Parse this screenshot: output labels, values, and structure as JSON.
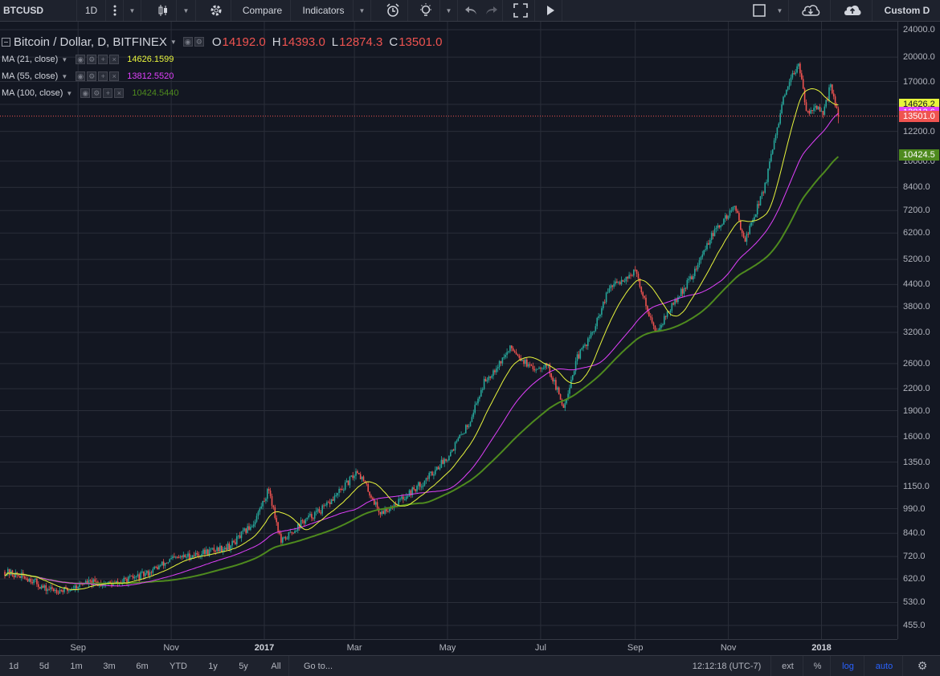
{
  "toolbar": {
    "symbol": "BTCUSD",
    "interval": "1D",
    "compare_label": "Compare",
    "indicators_label": "Indicators",
    "layout_label": "Custom D"
  },
  "legend": {
    "title": "Bitcoin / Dollar, D, BITFINEX",
    "o_label": "O",
    "o_value": "14192.0",
    "h_label": "H",
    "h_value": "14393.0",
    "l_label": "L",
    "l_value": "12874.3",
    "c_label": "C",
    "c_value": "13501.0",
    "studies": [
      {
        "name": "MA (21, close)",
        "value": "14626.1599",
        "color": "#e8f53c"
      },
      {
        "name": "MA (55, close)",
        "value": "13812.5520",
        "color": "#e040fb"
      },
      {
        "name": "MA (100, close)",
        "value": "10424.5440",
        "color": "#4e8a1e"
      }
    ]
  },
  "price_scale": {
    "ticks": [
      "24000.0",
      "20000.0",
      "17000.0",
      "14600.0",
      "12200.0",
      "10000.0",
      "8400.0",
      "7200.0",
      "6200.0",
      "5200.0",
      "4400.0",
      "3800.0",
      "3200.0",
      "2600.0",
      "2200.0",
      "1900.0",
      "1600.0",
      "1350.0",
      "1150.0",
      "990.0",
      "840.0",
      "720.0",
      "620.0",
      "530.0",
      "455.0"
    ],
    "labels": [
      {
        "text": "14626.2",
        "bg": "#e8f53c",
        "fg": "#131722"
      },
      {
        "text": "13812.6",
        "bg": "#e040fb",
        "fg": "#ffffff"
      },
      {
        "text": "13501.0",
        "bg": "#ef5350",
        "fg": "#ffffff"
      },
      {
        "text": "10424.5",
        "bg": "#4e8a1e",
        "fg": "#ffffff"
      }
    ]
  },
  "time_scale": {
    "labels": [
      "Sep",
      "Nov",
      "2017",
      "Mar",
      "May",
      "Jul",
      "Sep",
      "Nov",
      "2018"
    ]
  },
  "bottom": {
    "ranges": [
      "1d",
      "5d",
      "1m",
      "3m",
      "6m",
      "YTD",
      "1y",
      "5y",
      "All"
    ],
    "goto": "Go to...",
    "clock": "12:12:18 (UTC-7)",
    "ext": "ext",
    "percent": "%",
    "log": "log",
    "auto": "auto"
  },
  "colors": {
    "background": "#131722",
    "up": "#26a69a",
    "down": "#ef5350",
    "ma21": "#e8f53c",
    "ma55": "#e040fb",
    "ma100": "#4e8a1e"
  },
  "chart_data": {
    "type": "candlestick",
    "symbol": "BTCUSD",
    "exchange": "BITFINEX",
    "interval": "D",
    "scale": "log",
    "y_range": [
      420,
      25000
    ],
    "x_range": [
      "2016-07-15",
      "2018-01-15"
    ],
    "series": [
      {
        "name": "Bitcoin / Dollar",
        "kind": "ohlc",
        "last": {
          "o": 14192.0,
          "h": 14393.0,
          "l": 12874.3,
          "c": 13501.0
        }
      },
      {
        "name": "MA (21, close)",
        "kind": "line",
        "last": 14626.1599
      },
      {
        "name": "MA (55, close)",
        "kind": "line",
        "last": 13812.552
      },
      {
        "name": "MA (100, close)",
        "kind": "line",
        "last": 10424.544
      }
    ],
    "price_path": [
      [
        "2016-07-15",
        650
      ],
      [
        "2016-08-01",
        620
      ],
      [
        "2016-08-10",
        580
      ],
      [
        "2016-08-25",
        575
      ],
      [
        "2016-09-05",
        605
      ],
      [
        "2016-09-25",
        600
      ],
      [
        "2016-10-15",
        640
      ],
      [
        "2016-11-01",
        705
      ],
      [
        "2016-11-20",
        735
      ],
      [
        "2016-12-10",
        775
      ],
      [
        "2016-12-25",
        900
      ],
      [
        "2017-01-04",
        1130
      ],
      [
        "2017-01-12",
        790
      ],
      [
        "2017-01-25",
        900
      ],
      [
        "2017-02-10",
        1000
      ],
      [
        "2017-02-25",
        1180
      ],
      [
        "2017-03-03",
        1280
      ],
      [
        "2017-03-18",
        960
      ],
      [
        "2017-03-30",
        1040
      ],
      [
        "2017-04-15",
        1180
      ],
      [
        "2017-05-01",
        1400
      ],
      [
        "2017-05-15",
        1750
      ],
      [
        "2017-05-25",
        2300
      ],
      [
        "2017-06-12",
        2900
      ],
      [
        "2017-06-25",
        2500
      ],
      [
        "2017-07-05",
        2600
      ],
      [
        "2017-07-16",
        1950
      ],
      [
        "2017-07-25",
        2700
      ],
      [
        "2017-08-05",
        3250
      ],
      [
        "2017-08-15",
        4300
      ],
      [
        "2017-09-01",
        4800
      ],
      [
        "2017-09-14",
        3200
      ],
      [
        "2017-09-25",
        3800
      ],
      [
        "2017-10-10",
        4800
      ],
      [
        "2017-10-20",
        6000
      ],
      [
        "2017-11-05",
        7400
      ],
      [
        "2017-11-12",
        5900
      ],
      [
        "2017-11-25",
        8500
      ],
      [
        "2017-12-07",
        15000
      ],
      [
        "2017-12-17",
        19500
      ],
      [
        "2017-12-22",
        13800
      ],
      [
        "2017-12-28",
        14500
      ],
      [
        "2018-01-02",
        13500
      ],
      [
        "2018-01-07",
        16800
      ],
      [
        "2018-01-12",
        13501
      ]
    ]
  }
}
